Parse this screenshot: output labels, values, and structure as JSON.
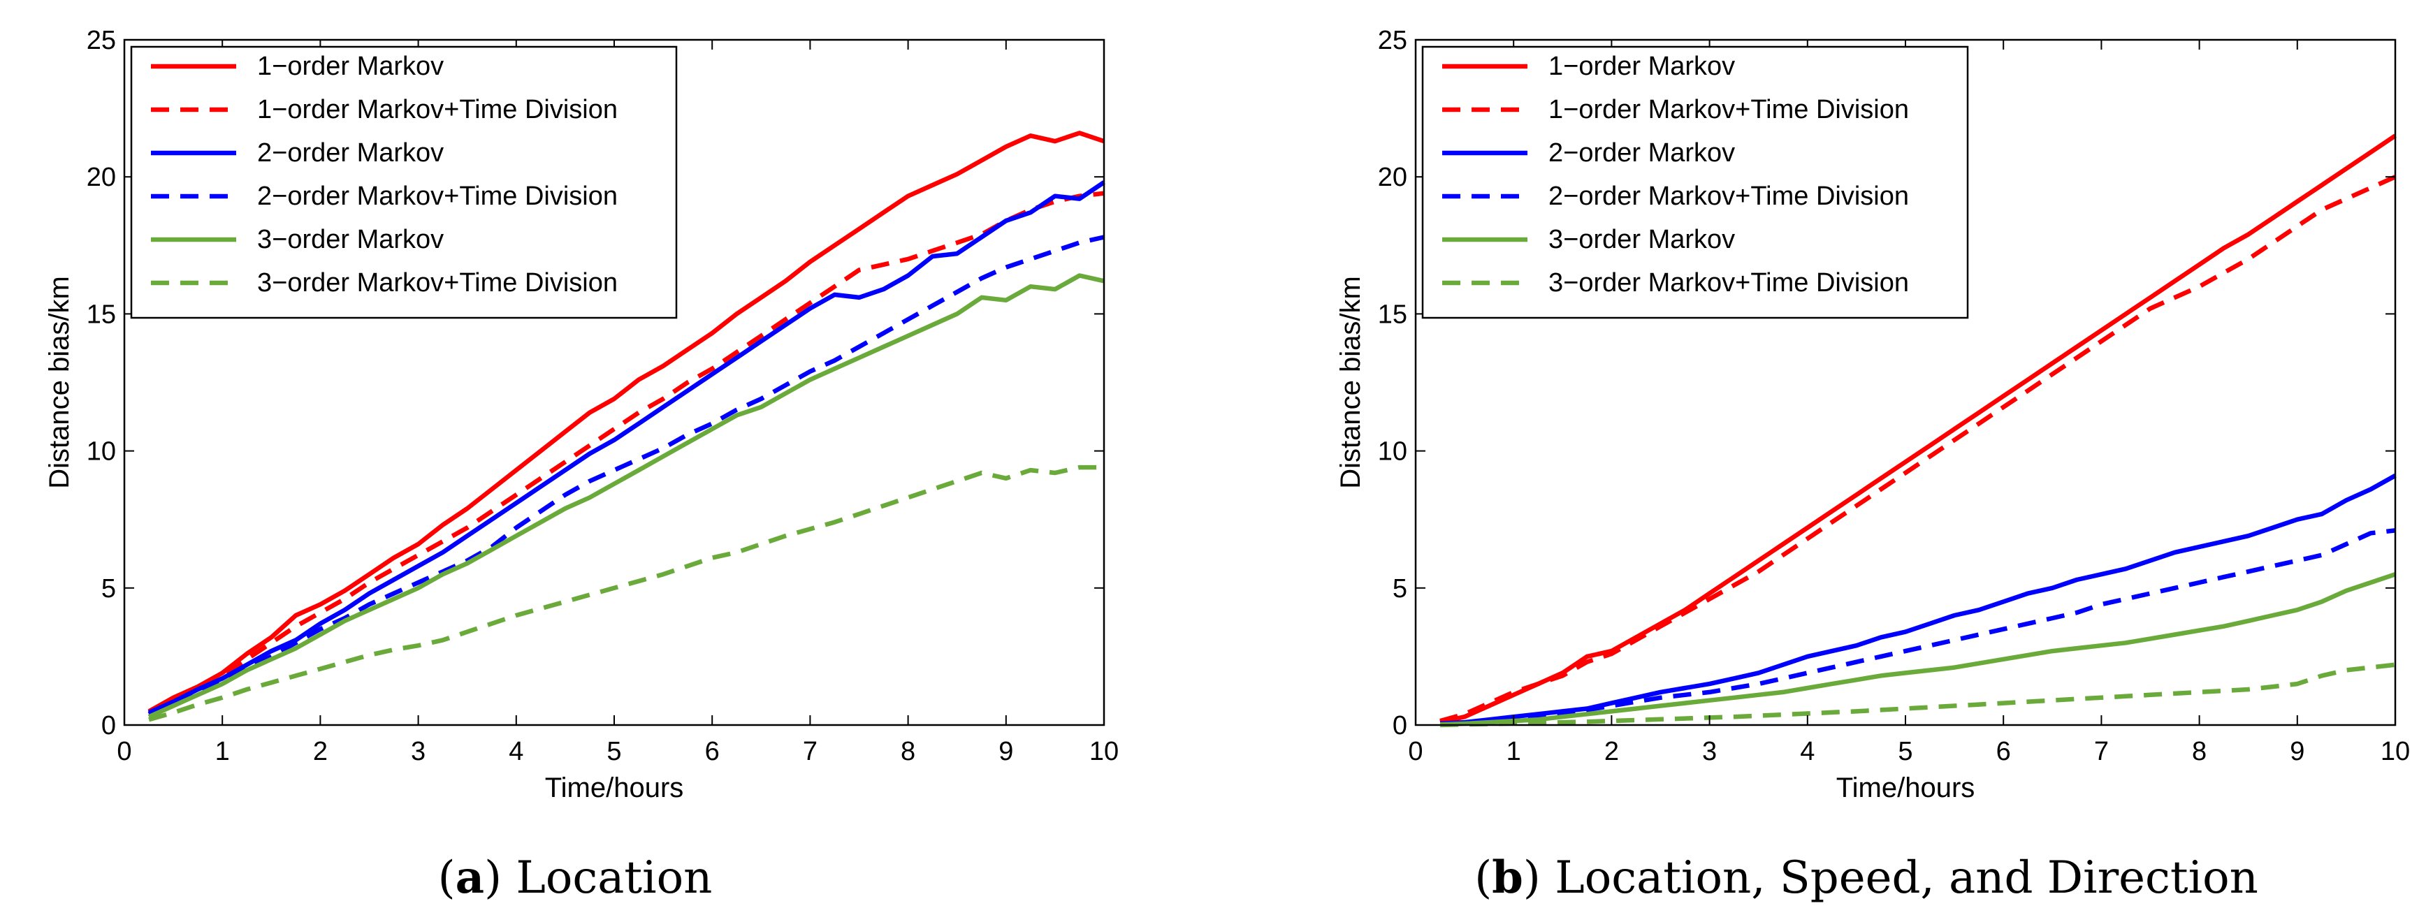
{
  "chart_data": [
    {
      "type": "line",
      "panel_letter": "a",
      "caption": "Location",
      "xlabel": "Time/hours",
      "ylabel": "Distance bias/km",
      "xlim": [
        0,
        10
      ],
      "ylim": [
        0,
        25
      ],
      "xticks": [
        0,
        1,
        2,
        3,
        4,
        5,
        6,
        7,
        8,
        9,
        10
      ],
      "yticks": [
        0,
        5,
        10,
        15,
        20,
        25
      ],
      "legend_position": "top-left",
      "x": [
        0.25,
        0.5,
        0.75,
        1.0,
        1.25,
        1.5,
        1.75,
        2.0,
        2.25,
        2.5,
        2.75,
        3.0,
        3.25,
        3.5,
        3.75,
        4.0,
        4.25,
        4.5,
        4.75,
        5.0,
        5.25,
        5.5,
        5.75,
        6.0,
        6.25,
        6.5,
        6.75,
        7.0,
        7.25,
        7.5,
        7.75,
        8.0,
        8.25,
        8.5,
        8.75,
        9.0,
        9.25,
        9.5,
        9.75,
        10.0
      ],
      "series": [
        {
          "name": "1−order Markov",
          "color": "#ff0000",
          "dash": "solid",
          "values": [
            0.5,
            1.0,
            1.4,
            1.9,
            2.6,
            3.2,
            4.0,
            4.4,
            4.9,
            5.5,
            6.1,
            6.6,
            7.3,
            7.9,
            8.6,
            9.3,
            10.0,
            10.7,
            11.4,
            11.9,
            12.6,
            13.1,
            13.7,
            14.3,
            15.0,
            15.6,
            16.2,
            16.9,
            17.5,
            18.1,
            18.7,
            19.3,
            19.7,
            20.1,
            20.6,
            21.1,
            21.5,
            21.3,
            21.6,
            21.3
          ]
        },
        {
          "name": "1−order Markov+Time Division",
          "color": "#ff0000",
          "dash": "dashed",
          "values": [
            0.4,
            0.9,
            1.3,
            1.8,
            2.4,
            3.0,
            3.6,
            4.1,
            4.6,
            5.2,
            5.7,
            6.2,
            6.7,
            7.2,
            7.8,
            8.4,
            9.0,
            9.6,
            10.2,
            10.8,
            11.4,
            11.9,
            12.5,
            13.0,
            13.6,
            14.2,
            14.8,
            15.4,
            16.0,
            16.6,
            16.8,
            17.0,
            17.3,
            17.6,
            17.9,
            18.4,
            18.8,
            19.1,
            19.3,
            19.4
          ]
        },
        {
          "name": "2−order Markov",
          "color": "#0000ff",
          "dash": "solid",
          "values": [
            0.45,
            0.85,
            1.3,
            1.7,
            2.2,
            2.7,
            3.1,
            3.7,
            4.2,
            4.8,
            5.3,
            5.8,
            6.3,
            6.9,
            7.5,
            8.1,
            8.7,
            9.3,
            9.9,
            10.4,
            11.0,
            11.6,
            12.2,
            12.8,
            13.4,
            14.0,
            14.6,
            15.2,
            15.7,
            15.6,
            15.9,
            16.4,
            17.1,
            17.2,
            17.8,
            18.4,
            18.7,
            19.3,
            19.2,
            19.8
          ]
        },
        {
          "name": "2−order Markov+Time Division",
          "color": "#0000ff",
          "dash": "dashed",
          "values": [
            0.4,
            0.8,
            1.2,
            1.6,
            2.1,
            2.5,
            3.0,
            3.5,
            3.9,
            4.4,
            4.8,
            5.2,
            5.6,
            6.0,
            6.5,
            7.2,
            7.8,
            8.4,
            8.9,
            9.3,
            9.7,
            10.1,
            10.6,
            11.0,
            11.5,
            11.9,
            12.4,
            12.9,
            13.3,
            13.8,
            14.3,
            14.8,
            15.3,
            15.8,
            16.3,
            16.7,
            17.0,
            17.3,
            17.6,
            17.8
          ]
        },
        {
          "name": "3−order Markov",
          "color": "#6aaa3a",
          "dash": "solid",
          "values": [
            0.3,
            0.7,
            1.1,
            1.5,
            2.0,
            2.4,
            2.8,
            3.3,
            3.8,
            4.2,
            4.6,
            5.0,
            5.5,
            5.9,
            6.4,
            6.9,
            7.4,
            7.9,
            8.3,
            8.8,
            9.3,
            9.8,
            10.3,
            10.8,
            11.3,
            11.6,
            12.1,
            12.6,
            13.0,
            13.4,
            13.8,
            14.2,
            14.6,
            15.0,
            15.6,
            15.5,
            16.0,
            15.9,
            16.4,
            16.2
          ]
        },
        {
          "name": "3−order Markov+Time Division",
          "color": "#6aaa3a",
          "dash": "dashed",
          "values": [
            0.2,
            0.45,
            0.75,
            1.0,
            1.3,
            1.55,
            1.8,
            2.05,
            2.3,
            2.55,
            2.75,
            2.9,
            3.1,
            3.4,
            3.7,
            4.0,
            4.25,
            4.5,
            4.75,
            5.0,
            5.25,
            5.5,
            5.8,
            6.1,
            6.3,
            6.6,
            6.9,
            7.15,
            7.4,
            7.7,
            8.0,
            8.3,
            8.6,
            8.9,
            9.2,
            9.0,
            9.3,
            9.2,
            9.4,
            9.4
          ]
        }
      ]
    },
    {
      "type": "line",
      "panel_letter": "b",
      "caption": "Location, Speed, and Direction",
      "xlabel": "Time/hours",
      "ylabel": "Distance bias/km",
      "xlim": [
        0,
        10
      ],
      "ylim": [
        0,
        25
      ],
      "xticks": [
        0,
        1,
        2,
        3,
        4,
        5,
        6,
        7,
        8,
        9,
        10
      ],
      "yticks": [
        0,
        5,
        10,
        15,
        20,
        25
      ],
      "legend_position": "top-left",
      "x": [
        0.25,
        0.5,
        0.75,
        1.0,
        1.25,
        1.5,
        1.75,
        2.0,
        2.25,
        2.5,
        2.75,
        3.0,
        3.25,
        3.5,
        3.75,
        4.0,
        4.25,
        4.5,
        4.75,
        5.0,
        5.25,
        5.5,
        5.75,
        6.0,
        6.25,
        6.5,
        6.75,
        7.0,
        7.25,
        7.5,
        7.75,
        8.0,
        8.25,
        8.5,
        8.75,
        9.0,
        9.25,
        9.5,
        9.75,
        10.0
      ],
      "series": [
        {
          "name": "1−order Markov",
          "color": "#ff0000",
          "dash": "solid",
          "values": [
            0.1,
            0.3,
            0.7,
            1.1,
            1.5,
            1.9,
            2.5,
            2.7,
            3.2,
            3.7,
            4.2,
            4.8,
            5.4,
            6.0,
            6.6,
            7.2,
            7.8,
            8.4,
            9.0,
            9.6,
            10.2,
            10.8,
            11.4,
            12.0,
            12.6,
            13.2,
            13.8,
            14.4,
            15.0,
            15.6,
            16.2,
            16.8,
            17.4,
            17.9,
            18.5,
            19.1,
            19.7,
            20.3,
            20.9,
            21.5
          ]
        },
        {
          "name": "1−order Markov+Time Division",
          "color": "#ff0000",
          "dash": "dashed",
          "values": [
            0.15,
            0.4,
            0.8,
            1.2,
            1.5,
            1.8,
            2.3,
            2.6,
            3.1,
            3.6,
            4.1,
            4.6,
            5.1,
            5.6,
            6.2,
            6.8,
            7.4,
            8.0,
            8.6,
            9.2,
            9.8,
            10.4,
            11.0,
            11.6,
            12.2,
            12.8,
            13.4,
            14.0,
            14.6,
            15.2,
            15.6,
            16.0,
            16.5,
            17.0,
            17.6,
            18.2,
            18.8,
            19.2,
            19.6,
            20.0
          ]
        },
        {
          "name": "2−order Markov",
          "color": "#0000ff",
          "dash": "solid",
          "values": [
            0.05,
            0.1,
            0.2,
            0.3,
            0.4,
            0.5,
            0.6,
            0.8,
            1.0,
            1.2,
            1.35,
            1.5,
            1.7,
            1.9,
            2.2,
            2.5,
            2.7,
            2.9,
            3.2,
            3.4,
            3.7,
            4.0,
            4.2,
            4.5,
            4.8,
            5.0,
            5.3,
            5.5,
            5.7,
            6.0,
            6.3,
            6.5,
            6.7,
            6.9,
            7.2,
            7.5,
            7.7,
            8.2,
            8.6,
            9.1
          ]
        },
        {
          "name": "2−order Markov+Time Division",
          "color": "#0000ff",
          "dash": "dashed",
          "values": [
            0.05,
            0.1,
            0.15,
            0.25,
            0.35,
            0.45,
            0.55,
            0.7,
            0.85,
            1.0,
            1.1,
            1.2,
            1.35,
            1.5,
            1.7,
            1.9,
            2.1,
            2.3,
            2.5,
            2.7,
            2.9,
            3.1,
            3.3,
            3.5,
            3.7,
            3.9,
            4.1,
            4.4,
            4.6,
            4.8,
            5.0,
            5.2,
            5.4,
            5.6,
            5.8,
            6.0,
            6.2,
            6.6,
            7.0,
            7.1
          ]
        },
        {
          "name": "3−order Markov",
          "color": "#6aaa3a",
          "dash": "solid",
          "values": [
            0.02,
            0.05,
            0.1,
            0.15,
            0.2,
            0.3,
            0.4,
            0.5,
            0.6,
            0.7,
            0.8,
            0.9,
            1.0,
            1.1,
            1.2,
            1.35,
            1.5,
            1.65,
            1.8,
            1.9,
            2.0,
            2.1,
            2.25,
            2.4,
            2.55,
            2.7,
            2.8,
            2.9,
            3.0,
            3.15,
            3.3,
            3.45,
            3.6,
            3.8,
            4.0,
            4.2,
            4.5,
            4.9,
            5.2,
            5.5
          ]
        },
        {
          "name": "3−order Markov+Time Division",
          "color": "#6aaa3a",
          "dash": "dashed",
          "values": [
            0.0,
            0.02,
            0.04,
            0.06,
            0.08,
            0.1,
            0.12,
            0.15,
            0.18,
            0.21,
            0.24,
            0.27,
            0.3,
            0.34,
            0.38,
            0.42,
            0.46,
            0.5,
            0.55,
            0.6,
            0.65,
            0.7,
            0.75,
            0.8,
            0.85,
            0.9,
            0.95,
            1.0,
            1.05,
            1.1,
            1.15,
            1.2,
            1.25,
            1.3,
            1.4,
            1.5,
            1.8,
            2.0,
            2.1,
            2.2
          ]
        }
      ]
    }
  ]
}
